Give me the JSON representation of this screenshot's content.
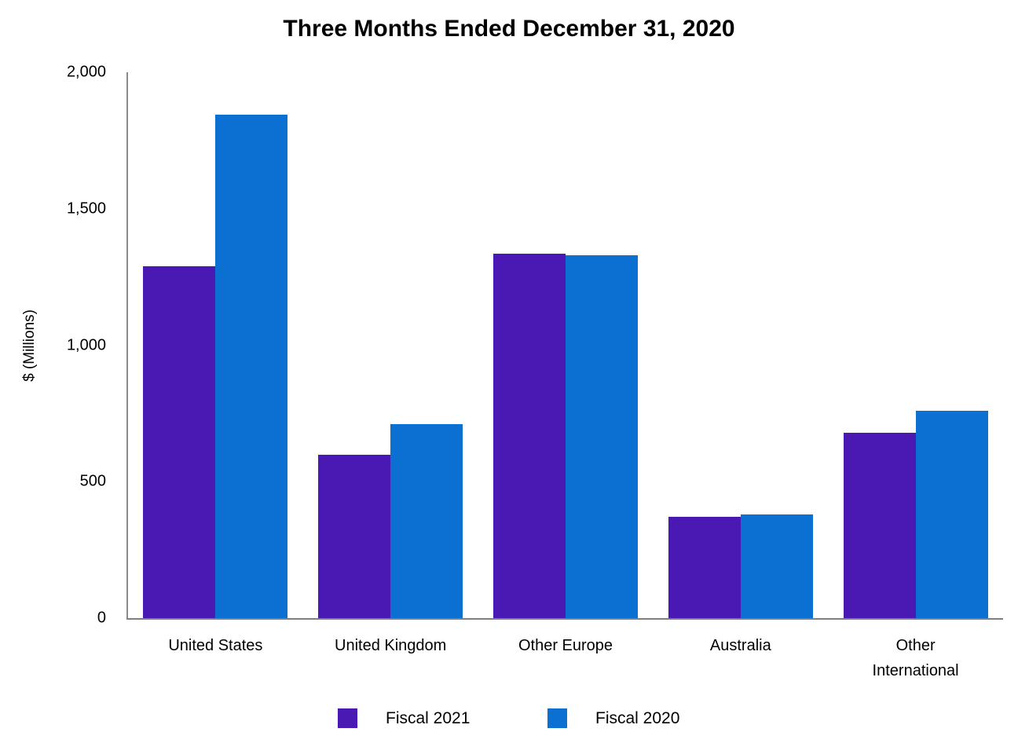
{
  "title": "Three Months Ended December 31, 2020",
  "y_axis": {
    "label": "$ (Millions)",
    "ticks": [
      {
        "label": "2,000",
        "value": 2000
      },
      {
        "label": "1,500",
        "value": 1500
      },
      {
        "label": "1,000",
        "value": 1000
      },
      {
        "label": "500",
        "value": 500
      },
      {
        "label": "0",
        "value": 0
      }
    ]
  },
  "colors": {
    "fiscal_2021": "#4A18B2",
    "fiscal_2020": "#0B70D1",
    "axis": "#8a8a8a",
    "text": "#000000",
    "background": "#ffffff"
  },
  "chart_data": {
    "type": "bar",
    "title": "Three Months Ended December 31, 2020",
    "xlabel": "",
    "ylabel": "$ (Millions)",
    "ylim": [
      0,
      2000
    ],
    "grid": false,
    "legend_position": "bottom",
    "categories": [
      "United States",
      "United Kingdom",
      "Other Europe",
      "Australia",
      "Other International"
    ],
    "category_label_lines": [
      [
        "United States"
      ],
      [
        "United Kingdom"
      ],
      [
        "Other Europe"
      ],
      [
        "Australia"
      ],
      [
        "Other",
        "International"
      ]
    ],
    "series": [
      {
        "name": "Fiscal 2021",
        "color": "#4A18B2",
        "values": [
          1290,
          600,
          1335,
          370,
          680
        ]
      },
      {
        "name": "Fiscal 2020",
        "color": "#0B70D1",
        "values": [
          1845,
          710,
          1330,
          380,
          760
        ]
      }
    ]
  }
}
